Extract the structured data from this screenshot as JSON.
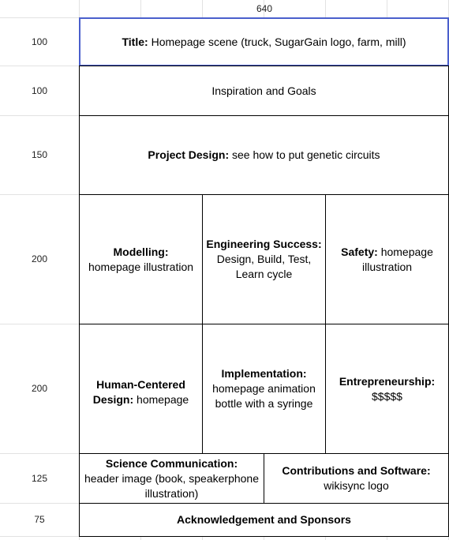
{
  "column_header": "640",
  "rows": [
    {
      "label": "100"
    },
    {
      "label": "100"
    },
    {
      "label": "150"
    },
    {
      "label": "200"
    },
    {
      "label": "200"
    },
    {
      "label": "125"
    },
    {
      "label": "75"
    }
  ],
  "cells": {
    "title": {
      "heading": "Title:",
      "text": " Homepage scene (truck, SugarGain logo, farm, mill)"
    },
    "inspiration": {
      "text": "Inspiration and Goals"
    },
    "project_design": {
      "heading": "Project Design:",
      "text": " see how to put genetic circuits"
    },
    "modelling": {
      "heading": "Modelling:",
      "text": "homepage illustration"
    },
    "engineering": {
      "heading": "Engineering Success:",
      "text": "Design, Build, Test, Learn cycle"
    },
    "safety": {
      "heading": "Safety:",
      "text": " homepage illustration"
    },
    "human_centered": {
      "heading": "Human-Centered Design:",
      "text": " homepage"
    },
    "implementation": {
      "heading": "Implementation:",
      "text": "homepage animation bottle with a syringe"
    },
    "entrepreneurship": {
      "heading": "Entrepreneurship:",
      "text": "$$$$$"
    },
    "science_comm": {
      "heading": "Science Communication:",
      "text": "header image (book, speakerphone illustration)"
    },
    "contributions": {
      "heading": "Contributions and Software:",
      "text": "wikisync logo"
    },
    "acknowledgement": {
      "heading": "Acknowledgement and Sponsors"
    }
  }
}
